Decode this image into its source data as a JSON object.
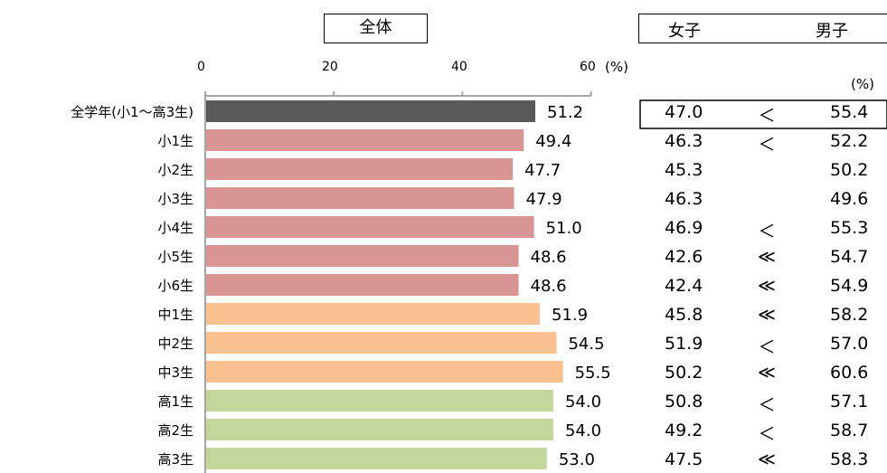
{
  "header": {
    "overall": "全体",
    "girls": "女子",
    "boys": "男子"
  },
  "axis": {
    "ticks": [
      "0",
      "20",
      "40",
      "60"
    ],
    "unit": "(%)"
  },
  "table_unit": "(%)",
  "colors": {
    "overall": "#595959",
    "elementary": "#d99594",
    "junior_high": "#fac090",
    "high_school": "#c3d69b"
  },
  "chart_data": {
    "type": "bar",
    "orientation": "horizontal",
    "xlim": [
      0,
      60
    ],
    "categories": [
      "全学年(小1～高3生)",
      "小1生",
      "小2生",
      "小3生",
      "小4生",
      "小5生",
      "小6生",
      "中1生",
      "中2生",
      "中3生",
      "高1生",
      "高2生",
      "高3生"
    ],
    "values": [
      51.2,
      49.4,
      47.7,
      47.9,
      51.0,
      48.6,
      48.6,
      51.9,
      54.5,
      55.5,
      54.0,
      54.0,
      53.0
    ],
    "value_labels": [
      "51.2",
      "49.4",
      "47.7",
      "47.9",
      "51.0",
      "48.6",
      "48.6",
      "51.9",
      "54.5",
      "55.5",
      "54.0",
      "54.0",
      "53.0"
    ],
    "groups": [
      "overall",
      "elementary",
      "elementary",
      "elementary",
      "elementary",
      "elementary",
      "elementary",
      "junior_high",
      "junior_high",
      "junior_high",
      "high_school",
      "high_school",
      "high_school"
    ],
    "girls": [
      "47.0",
      "46.3",
      "45.3",
      "46.3",
      "46.9",
      "42.6",
      "42.4",
      "45.8",
      "51.9",
      "50.2",
      "50.8",
      "49.2",
      "47.5"
    ],
    "comparison": [
      "＜",
      "＜",
      "",
      "",
      "＜",
      "≪",
      "≪",
      "≪",
      "＜",
      "≪",
      "＜",
      "＜",
      "≪"
    ],
    "boys": [
      "55.4",
      "52.2",
      "50.2",
      "49.6",
      "55.3",
      "54.7",
      "54.9",
      "58.2",
      "57.0",
      "60.6",
      "57.1",
      "58.7",
      "58.3"
    ]
  }
}
